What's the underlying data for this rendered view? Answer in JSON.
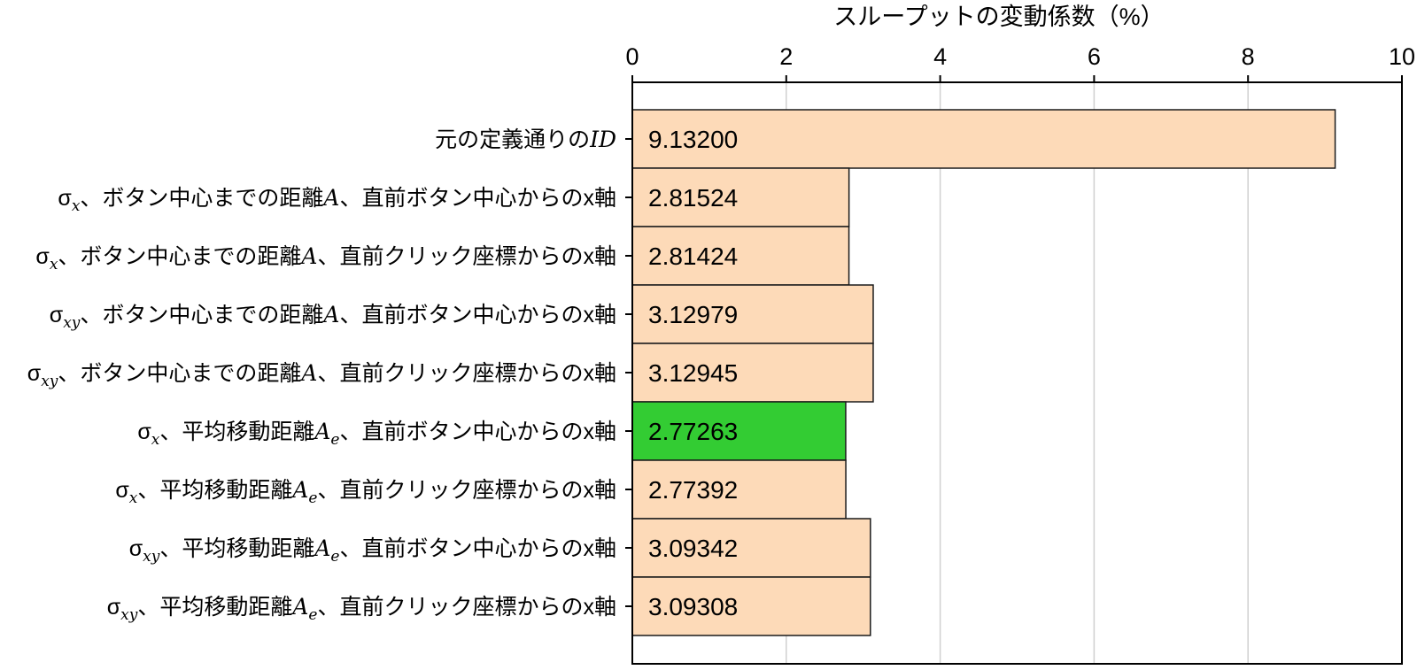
{
  "chart_data": {
    "type": "bar",
    "orientation": "horizontal",
    "title": "",
    "xlabel": "スループットの変動係数（%）",
    "ylabel": "",
    "xlim": [
      0,
      10
    ],
    "xticks": [
      "0",
      "2",
      "4",
      "6",
      "8",
      "10"
    ],
    "grid": true,
    "colors": {
      "default": "#FDDAB8",
      "highlight": "#33CC33",
      "edge": "#1a1a1a"
    },
    "bars": [
      {
        "label_main": "元の定義通りの",
        "label_italic": "ID",
        "sigma_sub": "",
        "mid": "",
        "mid_sub": "",
        "tail": "",
        "value": 9.132,
        "value_label": "9.13200",
        "highlight": false
      },
      {
        "label_main": "σ",
        "sigma_sub": "x",
        "mid": "、ボタン中心までの距離",
        "italic_A": "A",
        "mid_sub": "",
        "tail": "、直前ボタン中心からのx軸",
        "value": 2.81524,
        "value_label": "2.81524",
        "highlight": false
      },
      {
        "label_main": "σ",
        "sigma_sub": "x",
        "mid": "、ボタン中心までの距離",
        "italic_A": "A",
        "mid_sub": "",
        "tail": "、直前クリック座標からのx軸",
        "value": 2.81424,
        "value_label": "2.81424",
        "highlight": false
      },
      {
        "label_main": "σ",
        "sigma_sub": "xy",
        "mid": "、ボタン中心までの距離",
        "italic_A": "A",
        "mid_sub": "",
        "tail": "、直前ボタン中心からのx軸",
        "value": 3.12979,
        "value_label": "3.12979",
        "highlight": false
      },
      {
        "label_main": "σ",
        "sigma_sub": "xy",
        "mid": "、ボタン中心までの距離",
        "italic_A": "A",
        "mid_sub": "",
        "tail": "、直前クリック座標からのx軸",
        "value": 3.12945,
        "value_label": "3.12945",
        "highlight": false
      },
      {
        "label_main": "σ",
        "sigma_sub": "x",
        "mid": "、平均移動距離",
        "italic_A": "A",
        "mid_sub": "e",
        "tail": "、直前ボタン中心からのx軸",
        "value": 2.77263,
        "value_label": "2.77263",
        "highlight": true
      },
      {
        "label_main": "σ",
        "sigma_sub": "x",
        "mid": "、平均移動距離",
        "italic_A": "A",
        "mid_sub": "e",
        "tail": "、直前クリック座標からのx軸",
        "value": 2.77392,
        "value_label": "2.77392",
        "highlight": false
      },
      {
        "label_main": "σ",
        "sigma_sub": "xy",
        "mid": "、平均移動距離",
        "italic_A": "A",
        "mid_sub": "e",
        "tail": "、直前ボタン中心からのx軸",
        "value": 3.09342,
        "value_label": "3.09342",
        "highlight": false
      },
      {
        "label_main": "σ",
        "sigma_sub": "xy",
        "mid": "、平均移動距離",
        "italic_A": "A",
        "mid_sub": "e",
        "tail": "、直前クリック座標からのx軸",
        "value": 3.09308,
        "value_label": "3.09308",
        "highlight": false
      }
    ]
  }
}
